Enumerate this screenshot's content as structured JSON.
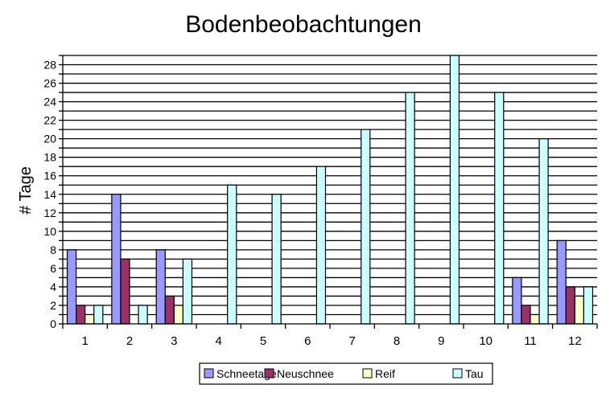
{
  "chart_data": {
    "type": "bar",
    "title": "Bodenbeobachtungen",
    "xlabel": "",
    "ylabel": "# Tage",
    "ylim": [
      0,
      29
    ],
    "ytick_step": 2,
    "grid": true,
    "legend_position": "bottom",
    "categories": [
      "1",
      "2",
      "3",
      "4",
      "5",
      "6",
      "7",
      "8",
      "9",
      "10",
      "11",
      "12"
    ],
    "yticks": [
      "0",
      "2",
      "4",
      "6",
      "8",
      "10",
      "12",
      "14",
      "16",
      "18",
      "20",
      "22",
      "24",
      "26",
      "28"
    ],
    "series": [
      {
        "name": "Schneetage",
        "color": "#9999FF",
        "values": [
          8,
          14,
          8,
          0,
          0,
          0,
          0,
          0,
          0,
          0,
          5,
          9
        ]
      },
      {
        "name": "Neuschnee",
        "color": "#993366",
        "values": [
          2,
          7,
          3,
          0,
          0,
          0,
          0,
          0,
          0,
          0,
          2,
          4
        ]
      },
      {
        "name": "Reif",
        "color": "#FFFFCC",
        "values": [
          1,
          0,
          2,
          0,
          0,
          0,
          0,
          0,
          0,
          0,
          1,
          3
        ]
      },
      {
        "name": "Tau",
        "color": "#CCFFFF",
        "values": [
          2,
          2,
          7,
          15,
          14,
          17,
          21,
          25,
          29,
          25,
          20,
          4
        ]
      }
    ]
  }
}
